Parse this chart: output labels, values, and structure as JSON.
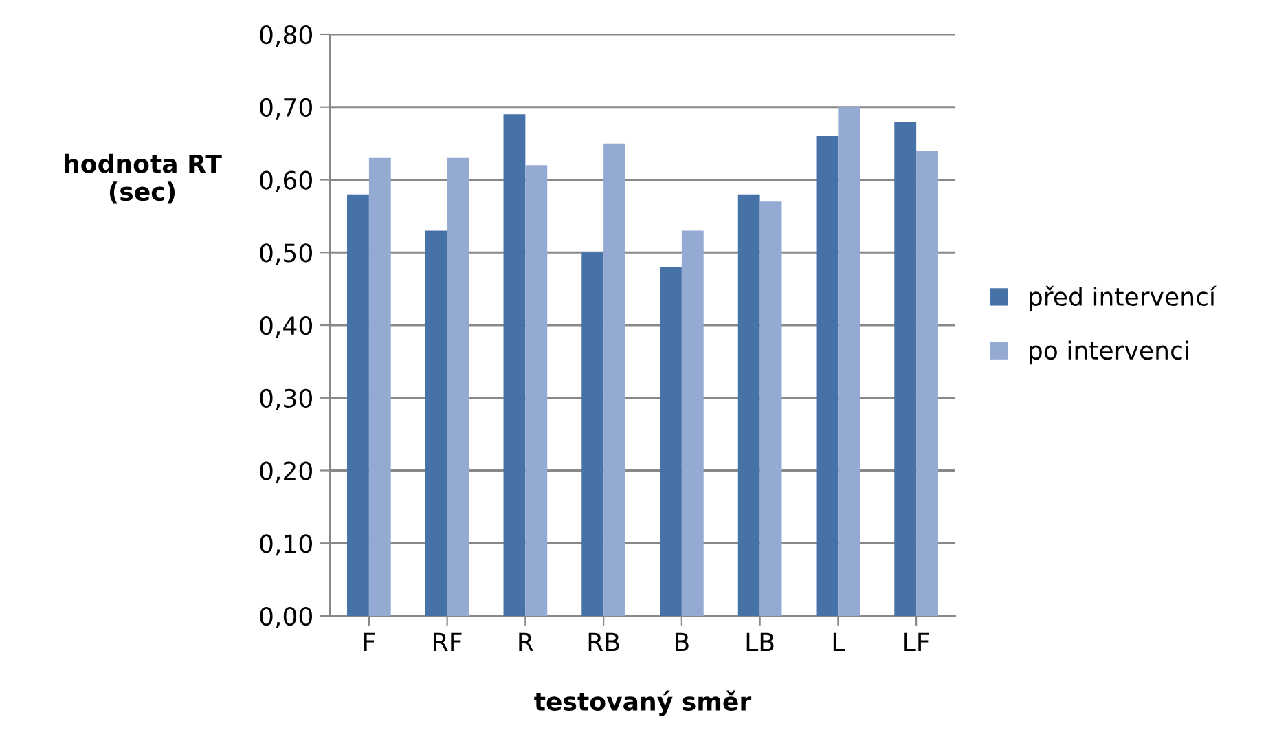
{
  "chart_data": {
    "type": "bar",
    "xlabel": "testovaný směr",
    "ylabel": "hodnota RT\n(sec)",
    "categories": [
      "F",
      "RF",
      "R",
      "RB",
      "B",
      "LB",
      "L",
      "LF"
    ],
    "series": [
      {
        "name": "před intervencí",
        "color": "#4672a8",
        "values": [
          0.58,
          0.53,
          0.69,
          0.5,
          0.48,
          0.58,
          0.66,
          0.68
        ]
      },
      {
        "name": "po intervenci",
        "color": "#95aad2",
        "values": [
          0.63,
          0.63,
          0.62,
          0.65,
          0.53,
          0.57,
          0.7,
          0.64
        ]
      }
    ],
    "ylim": [
      0,
      0.8
    ],
    "yticks": [
      {
        "value": 0,
        "label": "0,00"
      },
      {
        "value": 0.1,
        "label": "0,10"
      },
      {
        "value": 0.2,
        "label": "0,20"
      },
      {
        "value": 0.3,
        "label": "0,30"
      },
      {
        "value": 0.4,
        "label": "0,40"
      },
      {
        "value": 0.5,
        "label": "0,50"
      },
      {
        "value": 0.6,
        "label": "0,60"
      },
      {
        "value": 0.7,
        "label": "0,70"
      },
      {
        "value": 0.8,
        "label": "0,80"
      }
    ],
    "grid": "y",
    "legend": "right"
  }
}
